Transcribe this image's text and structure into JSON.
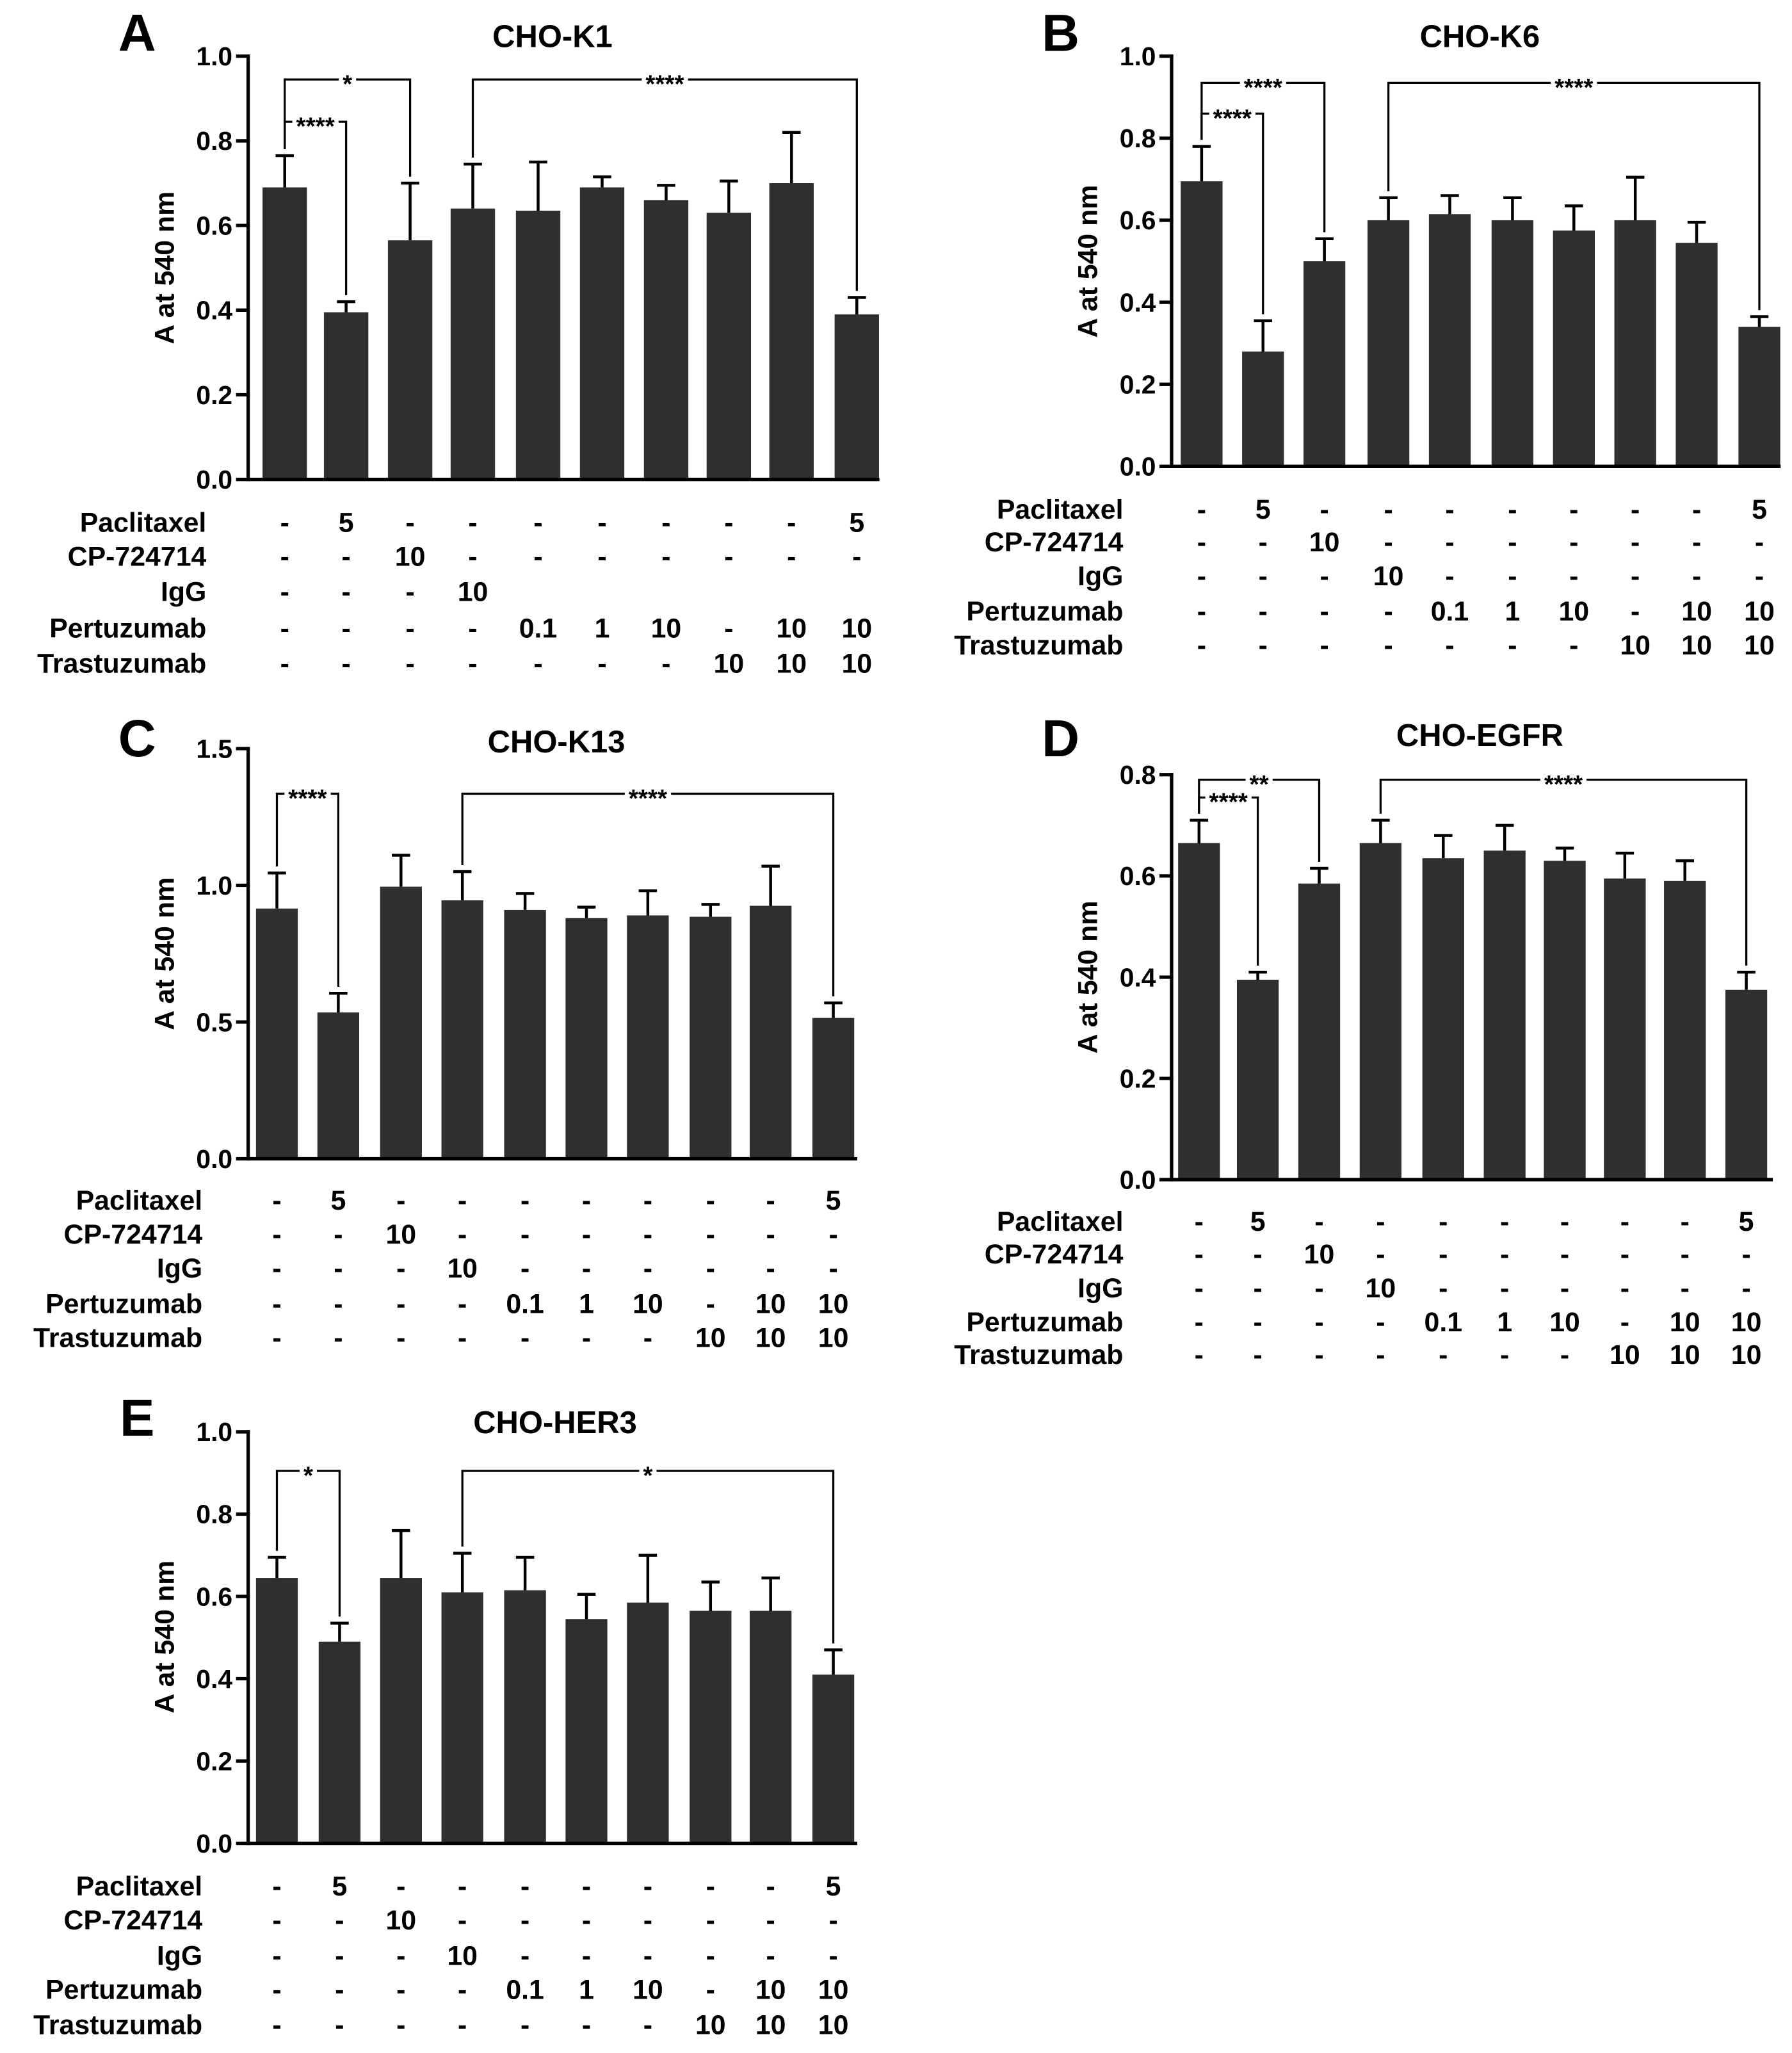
{
  "colors": {
    "bar": "#2f2f2f",
    "line": "#000000",
    "background": "#ffffff"
  },
  "chart_data": [
    {
      "panel_label": "A",
      "type": "bar",
      "title": "CHO-K1",
      "xlabel": "",
      "ylabel": "A at 540 nm",
      "ylim": [
        0,
        1.0
      ],
      "yticks": [
        0,
        0.2,
        0.4,
        0.6,
        0.8,
        1.0
      ],
      "ytick_labels": [
        "0.0",
        "0.2",
        "0.4",
        "0.6",
        "0.8",
        "1.0"
      ],
      "values": [
        0.69,
        0.395,
        0.565,
        0.64,
        0.635,
        0.69,
        0.66,
        0.63,
        0.7,
        0.39
      ],
      "errors": [
        0.075,
        0.025,
        0.135,
        0.105,
        0.115,
        0.025,
        0.035,
        0.075,
        0.12,
        0.04
      ],
      "significance": [
        {
          "from": 0,
          "to": 2,
          "y": 0.945,
          "label": "*"
        },
        {
          "from": 0,
          "to": 1,
          "y": 0.845,
          "label": "****"
        },
        {
          "from": 3,
          "to": 9,
          "y": 0.945,
          "label": "****"
        }
      ],
      "table": [
        {
          "label": "Paclitaxel",
          "cells": [
            "-",
            "5",
            "-",
            "-",
            "-",
            "-",
            "-",
            "-",
            "-",
            "5"
          ]
        },
        {
          "label": "CP-724714",
          "cells": [
            "-",
            "-",
            "10",
            "-",
            "-",
            "-",
            "-",
            "-",
            "-",
            "-"
          ]
        },
        {
          "label": "IgG",
          "cells": [
            "-",
            "-",
            "-",
            "10",
            "",
            "",
            "",
            "",
            "",
            ""
          ]
        },
        {
          "label": "Pertuzumab",
          "cells": [
            "-",
            "-",
            "-",
            "-",
            "0.1",
            "1",
            "10",
            "-",
            "10",
            "10"
          ]
        },
        {
          "label": "Trastuzumab",
          "cells": [
            "-",
            "-",
            "-",
            "-",
            "-",
            "-",
            "-",
            "10",
            "10",
            "10"
          ]
        }
      ]
    },
    {
      "panel_label": "B",
      "type": "bar",
      "title": "CHO-K6",
      "xlabel": "",
      "ylabel": "A at 540 nm",
      "ylim": [
        0,
        1.0
      ],
      "yticks": [
        0,
        0.2,
        0.4,
        0.6,
        0.8,
        1.0
      ],
      "ytick_labels": [
        "0.0",
        "0.2",
        "0.4",
        "0.6",
        "0.8",
        "1.0"
      ],
      "values": [
        0.695,
        0.28,
        0.5,
        0.6,
        0.615,
        0.6,
        0.575,
        0.6,
        0.545,
        0.34
      ],
      "errors": [
        0.085,
        0.075,
        0.055,
        0.055,
        0.045,
        0.055,
        0.06,
        0.105,
        0.05,
        0.025
      ],
      "significance": [
        {
          "from": 0,
          "to": 2,
          "y": 0.935,
          "label": "****"
        },
        {
          "from": 0,
          "to": 1,
          "y": 0.86,
          "label": "****"
        },
        {
          "from": 3,
          "to": 9,
          "y": 0.935,
          "label": "****"
        }
      ],
      "table": [
        {
          "label": "Paclitaxel",
          "cells": [
            "-",
            "5",
            "-",
            "-",
            "-",
            "-",
            "-",
            "-",
            "-",
            "5"
          ]
        },
        {
          "label": "CP-724714",
          "cells": [
            "-",
            "-",
            "10",
            "-",
            "-",
            "-",
            "-",
            "-",
            "-",
            "-"
          ]
        },
        {
          "label": "IgG",
          "cells": [
            "-",
            "-",
            "-",
            "10",
            "-",
            "-",
            "-",
            "-",
            "-",
            "-"
          ]
        },
        {
          "label": "Pertuzumab",
          "cells": [
            "-",
            "-",
            "-",
            "-",
            "0.1",
            "1",
            "10",
            "-",
            "10",
            "10"
          ]
        },
        {
          "label": "Trastuzumab",
          "cells": [
            "-",
            "-",
            "-",
            "-",
            "-",
            "-",
            "-",
            "10",
            "10",
            "10"
          ]
        }
      ]
    },
    {
      "panel_label": "C",
      "type": "bar",
      "title": "CHO-K13",
      "xlabel": "",
      "ylabel": "A at 540 nm",
      "ylim": [
        0,
        1.5
      ],
      "yticks": [
        0,
        0.5,
        1.0,
        1.5
      ],
      "ytick_labels": [
        "0.0",
        "0.5",
        "1.0",
        "1.5"
      ],
      "values": [
        0.915,
        0.535,
        0.995,
        0.945,
        0.91,
        0.88,
        0.89,
        0.885,
        0.925,
        0.515
      ],
      "errors": [
        0.13,
        0.07,
        0.115,
        0.105,
        0.06,
        0.04,
        0.09,
        0.045,
        0.145,
        0.055
      ],
      "significance": [
        {
          "from": 0,
          "to": 1,
          "y": 1.335,
          "label": "****"
        },
        {
          "from": 3,
          "to": 9,
          "y": 1.335,
          "label": "****"
        }
      ],
      "table": [
        {
          "label": "Paclitaxel",
          "cells": [
            "-",
            "5",
            "-",
            "-",
            "-",
            "-",
            "-",
            "-",
            "-",
            "5"
          ]
        },
        {
          "label": "CP-724714",
          "cells": [
            "-",
            "-",
            "10",
            "-",
            "-",
            "-",
            "-",
            "-",
            "-",
            "-"
          ]
        },
        {
          "label": "IgG",
          "cells": [
            "-",
            "-",
            "-",
            "10",
            "-",
            "-",
            "-",
            "-",
            "-",
            "-"
          ]
        },
        {
          "label": "Pertuzumab",
          "cells": [
            "-",
            "-",
            "-",
            "-",
            "0.1",
            "1",
            "10",
            "-",
            "10",
            "10"
          ]
        },
        {
          "label": "Trastuzumab",
          "cells": [
            "-",
            "-",
            "-",
            "-",
            "-",
            "-",
            "-",
            "10",
            "10",
            "10"
          ]
        }
      ]
    },
    {
      "panel_label": "D",
      "type": "bar",
      "title": "CHO-EGFR",
      "xlabel": "",
      "ylabel": "A at 540 nm",
      "ylim": [
        0,
        0.8
      ],
      "yticks": [
        0,
        0.2,
        0.4,
        0.6,
        0.8
      ],
      "ytick_labels": [
        "0.0",
        "0.2",
        "0.4",
        "0.6",
        "0.8"
      ],
      "values": [
        0.665,
        0.395,
        0.585,
        0.665,
        0.635,
        0.65,
        0.63,
        0.595,
        0.59,
        0.375
      ],
      "errors": [
        0.045,
        0.015,
        0.03,
        0.045,
        0.045,
        0.05,
        0.025,
        0.05,
        0.04,
        0.035
      ],
      "significance": [
        {
          "from": 0,
          "to": 2,
          "y": 0.79,
          "label": "**"
        },
        {
          "from": 0,
          "to": 1,
          "y": 0.755,
          "label": "****"
        },
        {
          "from": 3,
          "to": 9,
          "y": 0.79,
          "label": "****"
        }
      ],
      "table": [
        {
          "label": "Paclitaxel",
          "cells": [
            "-",
            "5",
            "-",
            "-",
            "-",
            "-",
            "-",
            "-",
            "-",
            "5"
          ]
        },
        {
          "label": "CP-724714",
          "cells": [
            "-",
            "-",
            "10",
            "-",
            "-",
            "-",
            "-",
            "-",
            "-",
            "-"
          ]
        },
        {
          "label": "IgG",
          "cells": [
            "-",
            "-",
            "-",
            "10",
            "-",
            "-",
            "-",
            "-",
            "-",
            "-"
          ]
        },
        {
          "label": "Pertuzumab",
          "cells": [
            "-",
            "-",
            "-",
            "-",
            "0.1",
            "1",
            "10",
            "-",
            "10",
            "10"
          ]
        },
        {
          "label": "Trastuzumab",
          "cells": [
            "-",
            "-",
            "-",
            "-",
            "-",
            "-",
            "-",
            "10",
            "10",
            "10"
          ]
        }
      ]
    },
    {
      "panel_label": "E",
      "type": "bar",
      "title": "CHO-HER3",
      "xlabel": "",
      "ylabel": "A at 540 nm",
      "ylim": [
        0,
        1.0
      ],
      "yticks": [
        0,
        0.2,
        0.4,
        0.6,
        0.8,
        1.0
      ],
      "ytick_labels": [
        "0.0",
        "0.2",
        "0.4",
        "0.6",
        "0.8",
        "1.0"
      ],
      "values": [
        0.645,
        0.49,
        0.645,
        0.61,
        0.615,
        0.545,
        0.585,
        0.565,
        0.565,
        0.41
      ],
      "errors": [
        0.05,
        0.045,
        0.115,
        0.095,
        0.08,
        0.06,
        0.115,
        0.07,
        0.08,
        0.06
      ],
      "significance": [
        {
          "from": 0,
          "to": 1,
          "y": 0.905,
          "label": "*"
        },
        {
          "from": 3,
          "to": 9,
          "y": 0.905,
          "label": "*"
        }
      ],
      "table": [
        {
          "label": "Paclitaxel",
          "cells": [
            "-",
            "5",
            "-",
            "-",
            "-",
            "-",
            "-",
            "-",
            "-",
            "5"
          ]
        },
        {
          "label": "CP-724714",
          "cells": [
            "-",
            "-",
            "10",
            "-",
            "-",
            "-",
            "-",
            "-",
            "-",
            "-"
          ]
        },
        {
          "label": "IgG",
          "cells": [
            "-",
            "-",
            "-",
            "10",
            "-",
            "-",
            "-",
            "-",
            "-",
            "-"
          ]
        },
        {
          "label": "Pertuzumab",
          "cells": [
            "-",
            "-",
            "-",
            "-",
            "0.1",
            "1",
            "10",
            "-",
            "10",
            "10"
          ]
        },
        {
          "label": "Trastuzumab",
          "cells": [
            "-",
            "-",
            "-",
            "-",
            "-",
            "-",
            "-",
            "10",
            "10",
            "10"
          ]
        }
      ]
    }
  ]
}
